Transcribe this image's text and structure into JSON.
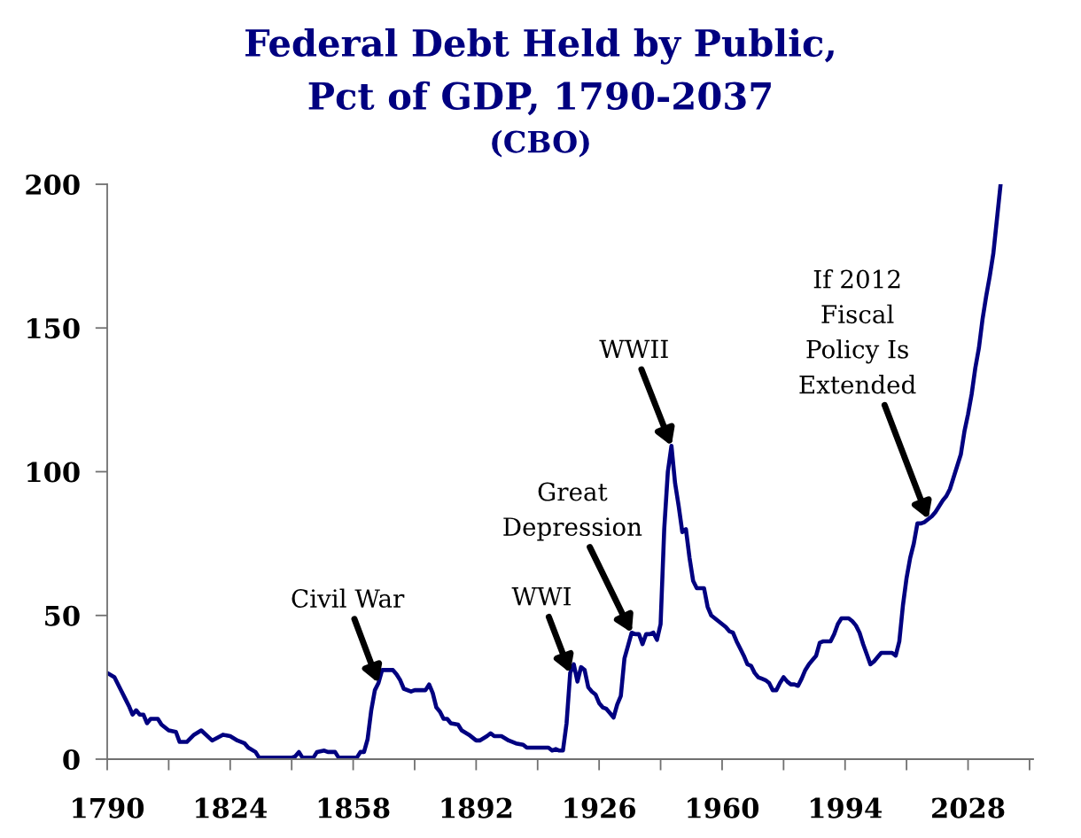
{
  "chart_data": {
    "type": "line",
    "title": "Federal Debt Held by Public,\nPct of GDP, 1790-2037",
    "subtitle": "(CBO)",
    "x": [
      1790,
      1792,
      1794,
      1795,
      1796,
      1797,
      1798,
      1799,
      1800,
      1801,
      1802,
      1804,
      1805,
      1807,
      1809,
      1810,
      1812,
      1814,
      1816,
      1819,
      1822,
      1824,
      1826,
      1828,
      1829,
      1831,
      1832,
      1838,
      1841,
      1842,
      1843,
      1844,
      1847,
      1848,
      1850,
      1851,
      1853,
      1854,
      1859,
      1860,
      1861,
      1862,
      1863,
      1864,
      1865,
      1866,
      1869,
      1870,
      1871,
      1872,
      1874,
      1875,
      1878,
      1879,
      1880,
      1881,
      1882,
      1883,
      1884,
      1885,
      1887,
      1888,
      1890,
      1892,
      1893,
      1895,
      1896,
      1897,
      1899,
      1901,
      1903,
      1905,
      1906,
      1912,
      1913,
      1914,
      1915,
      1916,
      1917,
      1918,
      1919,
      1920,
      1921,
      1922,
      1923,
      1924,
      1925,
      1926,
      1927,
      1928,
      1929,
      1930,
      1931,
      1932,
      1933,
      1934,
      1935,
      1936,
      1937,
      1938,
      1939,
      1940,
      1941,
      1942,
      1943,
      1944,
      1945,
      1946,
      1947,
      1948,
      1949,
      1950,
      1951,
      1952,
      1953,
      1954,
      1955,
      1956,
      1957,
      1958,
      1959,
      1960,
      1961,
      1962,
      1963,
      1964,
      1965,
      1966,
      1967,
      1968,
      1969,
      1970,
      1971,
      1972,
      1973,
      1974,
      1975,
      1976,
      1977,
      1978,
      1979,
      1980,
      1981,
      1982,
      1983,
      1984,
      1985,
      1986,
      1987,
      1988,
      1989,
      1990,
      1991,
      1992,
      1993,
      1994,
      1995,
      1996,
      1997,
      1998,
      1999,
      2000,
      2001,
      2002,
      2003,
      2004,
      2005,
      2006,
      2007,
      2008,
      2009,
      2010,
      2011,
      2012,
      2013,
      2014,
      2015,
      2016,
      2017,
      2018,
      2019,
      2020,
      2021,
      2022,
      2023,
      2024,
      2025,
      2026,
      2027,
      2028,
      2029,
      2030,
      2031,
      2032,
      2033,
      2034,
      2035,
      2036,
      2037
    ],
    "values": [
      30,
      28.5,
      23.5,
      21,
      18.5,
      15.5,
      17,
      15.5,
      15.5,
      12.5,
      14,
      14,
      12,
      10,
      9.5,
      6,
      6,
      8.5,
      10,
      6.5,
      8.5,
      8,
      6.5,
      5.5,
      4,
      2.5,
      0.5,
      0.5,
      0.5,
      1,
      2.5,
      0.5,
      0.5,
      2.5,
      3,
      2.5,
      2.5,
      0.5,
      0.5,
      2.5,
      2.5,
      7,
      17,
      24,
      26.5,
      31,
      31,
      29.5,
      27.5,
      24.5,
      23.5,
      24,
      24,
      26,
      23,
      18,
      16.5,
      14,
      14,
      12.5,
      12,
      10,
      8.5,
      6.5,
      6.5,
      8,
      9,
      8,
      8,
      6.5,
      5.5,
      5,
      4,
      4,
      3,
      3.5,
      3,
      3,
      12.5,
      30,
      33,
      27,
      32,
      31,
      25,
      23.5,
      22.5,
      19.5,
      18,
      17.5,
      16,
      14.5,
      19,
      22,
      35,
      39.5,
      44,
      43.5,
      43.5,
      40,
      43.5,
      43.5,
      44,
      41.5,
      47,
      80,
      100,
      109,
      96,
      88,
      79,
      80,
      70,
      62,
      59.5,
      59.5,
      59.5,
      53,
      50,
      49,
      48,
      47,
      46,
      44.5,
      44,
      41,
      38.5,
      36,
      33,
      32.5,
      30,
      28.5,
      28,
      27.5,
      26.5,
      24,
      24,
      26.5,
      28.5,
      27,
      26,
      26,
      25.5,
      28,
      31,
      33,
      34.5,
      36,
      40.5,
      41,
      41,
      41,
      43.5,
      47,
      49,
      49,
      49,
      48,
      46.5,
      44,
      40,
      36.5,
      33,
      34,
      35.5,
      37,
      37,
      37,
      37,
      36,
      41,
      53.5,
      63,
      70,
      75,
      82,
      82,
      82.5,
      83.5,
      84.5,
      86,
      88,
      90,
      91.5,
      94,
      98,
      102,
      106,
      114,
      120,
      127,
      136,
      143,
      153,
      161,
      168,
      176,
      188,
      200
    ],
    "color": "#000080",
    "line_style": "solid",
    "xlim": [
      1790,
      2046
    ],
    "ylim": [
      0,
      200
    ],
    "xticks": [
      1790,
      {
        "value": 1807,
        "label": null
      },
      1824,
      {
        "value": 1841,
        "label": null
      },
      1858,
      {
        "value": 1875,
        "label": null
      },
      1892,
      {
        "value": 1909,
        "label": null
      },
      1926,
      {
        "value": 1943,
        "label": null
      },
      1960,
      {
        "value": 1977,
        "label": null
      },
      1994,
      {
        "value": 2011,
        "label": null
      },
      2028,
      {
        "value": 2045,
        "label": null
      }
    ],
    "yticks": [
      0,
      50,
      100,
      150,
      200
    ],
    "annotations": [
      {
        "text": "Civil War",
        "x": 1865,
        "y": 26.5
      },
      {
        "text": "WWI",
        "x": 1918,
        "y": 30
      },
      {
        "text": "Great\nDepression",
        "x": 1935,
        "y": 44
      },
      {
        "text": "WWII",
        "x": 1946,
        "y": 109
      },
      {
        "text": "If 2012\nFiscal\nPolicy Is\nExtended",
        "x": 2017,
        "y": 83.5
      }
    ]
  }
}
